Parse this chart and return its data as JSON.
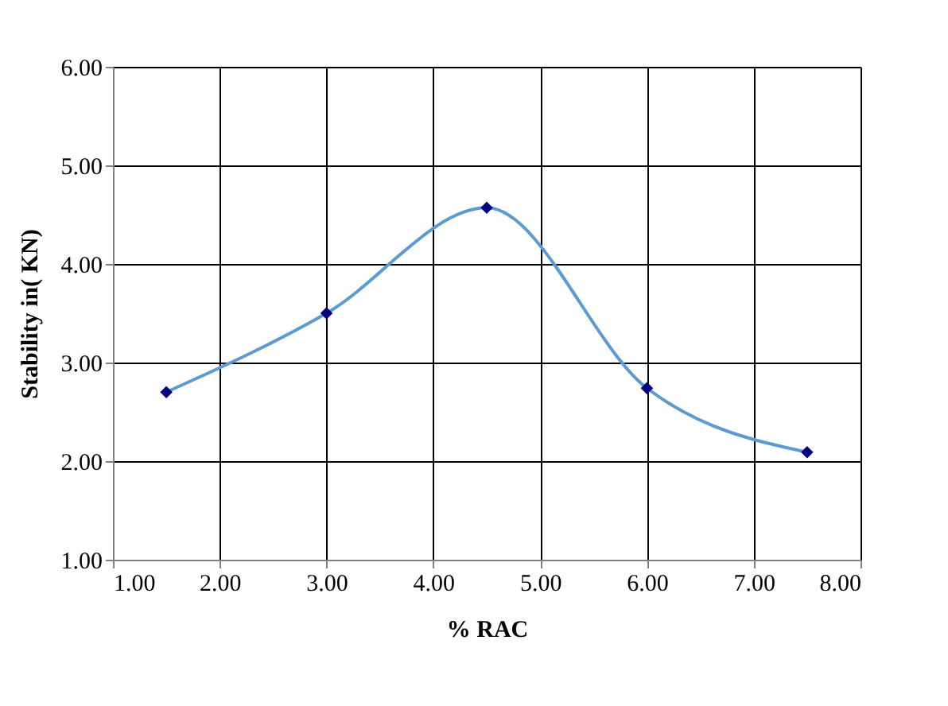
{
  "chart_data": {
    "type": "line",
    "xlabel": "% RAC",
    "ylabel": "Stability in( KN)",
    "x": [
      1.5,
      3.0,
      4.5,
      6.0,
      7.5
    ],
    "series": [
      {
        "color": "#5b9bd5",
        "values": [
          2.7,
          3.5,
          4.57,
          2.74,
          2.09
        ]
      }
    ],
    "marker": "diamond",
    "line_style": "solid",
    "xlim": [
      1,
      8
    ],
    "xticks": [
      {
        "value": 1,
        "label": "1.00"
      },
      {
        "value": 2,
        "label": "2.00"
      },
      {
        "value": 3,
        "label": "3.00"
      },
      {
        "value": 4,
        "label": "4.00"
      },
      {
        "value": 5,
        "label": "5.00"
      },
      {
        "value": 6,
        "label": "6.00"
      },
      {
        "value": 7,
        "label": "7.00"
      },
      {
        "value": 8,
        "label": "8.00"
      }
    ],
    "ylim": [
      1,
      6
    ],
    "yticks": [
      {
        "value": 1,
        "label": "1.00"
      },
      {
        "value": 2,
        "label": "2.00"
      },
      {
        "value": 3,
        "label": "3.00"
      },
      {
        "value": 4,
        "label": "4.00"
      },
      {
        "value": 5,
        "label": "5.00"
      },
      {
        "value": 6,
        "label": "6.00"
      }
    ],
    "grid": true,
    "legend": false
  }
}
